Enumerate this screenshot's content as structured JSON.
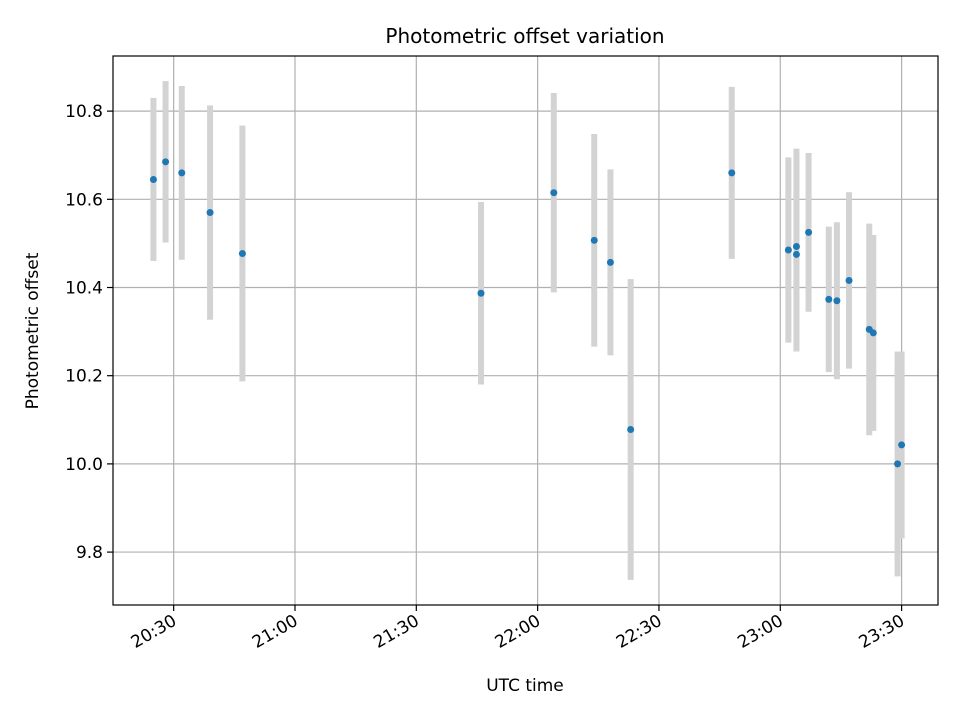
{
  "chart_data": {
    "type": "scatter",
    "title": "Photometric offset variation",
    "xlabel": "UTC time",
    "ylabel": "Photometric offset",
    "x_axis": "time",
    "xlim": [
      "20:15",
      "23:39"
    ],
    "ylim": [
      9.68,
      10.925
    ],
    "x_ticks": [
      "20:30",
      "21:00",
      "21:30",
      "22:00",
      "22:30",
      "23:00",
      "23:30"
    ],
    "y_ticks": [
      9.8,
      10.0,
      10.2,
      10.4,
      10.6,
      10.8
    ],
    "grid": true,
    "colors": {
      "point": "#1f77b4",
      "errorbar": "#d3d3d3",
      "grid": "#b0b0b0"
    },
    "points": [
      {
        "time": "20:25",
        "y": 10.645,
        "yerr": 0.185
      },
      {
        "time": "20:28",
        "y": 10.685,
        "yerr": 0.183
      },
      {
        "time": "20:32",
        "y": 10.66,
        "yerr": 0.197
      },
      {
        "time": "20:39",
        "y": 10.57,
        "yerr": 0.243
      },
      {
        "time": "20:47",
        "y": 10.477,
        "yerr": 0.29
      },
      {
        "time": "21:46",
        "y": 10.387,
        "yerr": 0.207
      },
      {
        "time": "22:04",
        "y": 10.615,
        "yerr": 0.226
      },
      {
        "time": "22:14",
        "y": 10.507,
        "yerr": 0.241
      },
      {
        "time": "22:18",
        "y": 10.457,
        "yerr": 0.211
      },
      {
        "time": "22:23",
        "y": 10.078,
        "yerr": 0.341
      },
      {
        "time": "22:48",
        "y": 10.66,
        "yerr": 0.195
      },
      {
        "time": "23:02",
        "y": 10.485,
        "yerr": 0.21
      },
      {
        "time": "23:04",
        "y": 10.475,
        "yerr": 0.22
      },
      {
        "time": "23:04",
        "y": 10.493,
        "yerr": 0.222
      },
      {
        "time": "23:07",
        "y": 10.525,
        "yerr": 0.18
      },
      {
        "time": "23:12",
        "y": 10.373,
        "yerr": 0.165
      },
      {
        "time": "23:14",
        "y": 10.37,
        "yerr": 0.178
      },
      {
        "time": "23:17",
        "y": 10.416,
        "yerr": 0.2
      },
      {
        "time": "23:22",
        "y": 10.305,
        "yerr": 0.24
      },
      {
        "time": "23:23",
        "y": 10.297,
        "yerr": 0.222
      },
      {
        "time": "23:29",
        "y": 10.0,
        "yerr": 0.255
      },
      {
        "time": "23:30",
        "y": 10.043,
        "yerr": 0.212
      }
    ]
  }
}
